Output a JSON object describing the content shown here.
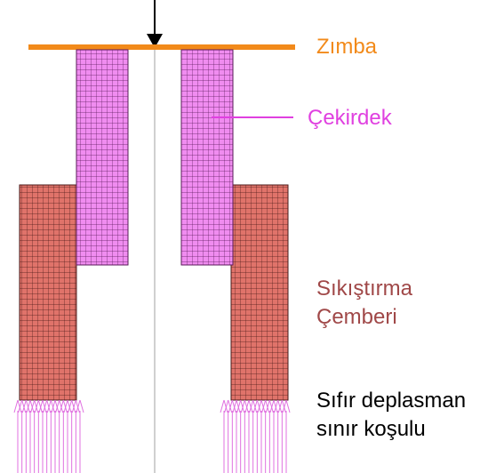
{
  "labels": {
    "punch": "Zımba",
    "core": "Çekirdek",
    "ring_line1": "Sıkıştırma",
    "ring_line2": "Çemberi",
    "bc_line1": "Sıfır deplasman",
    "bc_line2": "sınır koşulu"
  },
  "colors": {
    "punch": "#f28a1a",
    "core_fill": "#f08cf0",
    "core_mesh": "#5a1a5a",
    "ring_fill": "#e0736a",
    "ring_mesh": "#4a1a18",
    "core_text": "#e040e0",
    "ring_text": "#a04848",
    "bc_text": "#000000",
    "bc_arrows": "#e070e0",
    "axis": "#b0b0b0"
  }
}
